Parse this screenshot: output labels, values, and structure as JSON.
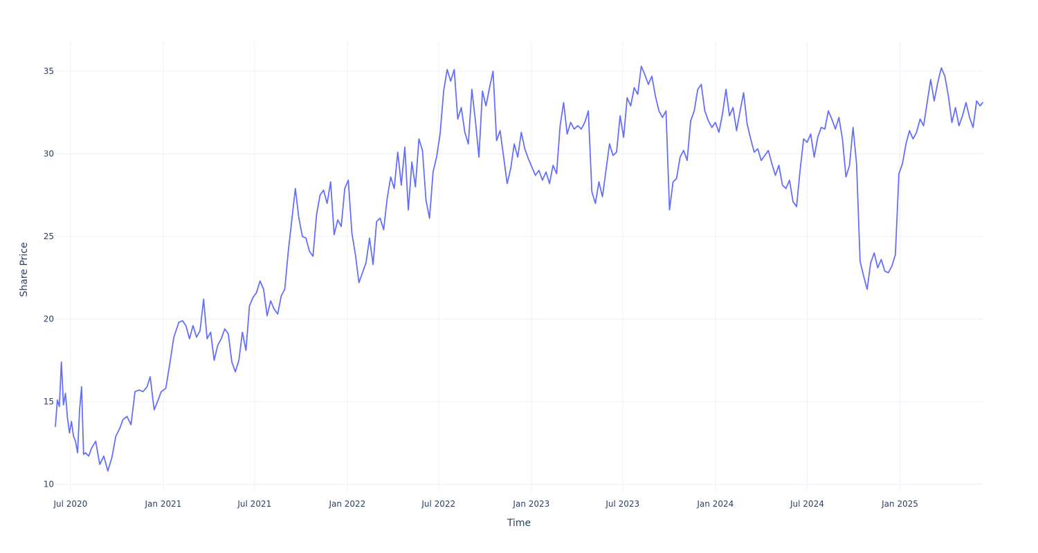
{
  "chart_data": {
    "type": "line",
    "title": "",
    "xlabel": "Time",
    "ylabel": "Share Price",
    "xlim": [
      "2020-06-01",
      "2025-06-14"
    ],
    "ylim": [
      9.6,
      36.8
    ],
    "grid": true,
    "legend": "none",
    "x_ticks": [
      {
        "date": "2020-07-01",
        "label": "Jul 2020"
      },
      {
        "date": "2021-01-01",
        "label": "Jan 2021"
      },
      {
        "date": "2021-07-01",
        "label": "Jul 2021"
      },
      {
        "date": "2022-01-01",
        "label": "Jan 2022"
      },
      {
        "date": "2022-07-01",
        "label": "Jul 2022"
      },
      {
        "date": "2023-01-01",
        "label": "Jan 2023"
      },
      {
        "date": "2023-07-01",
        "label": "Jul 2023"
      },
      {
        "date": "2024-01-01",
        "label": "Jan 2024"
      },
      {
        "date": "2024-07-01",
        "label": "Jul 2024"
      },
      {
        "date": "2025-01-01",
        "label": "Jan 2025"
      }
    ],
    "y_ticks": [
      {
        "value": 10,
        "label": "10"
      },
      {
        "value": 15,
        "label": "15"
      },
      {
        "value": 20,
        "label": "20"
      },
      {
        "value": 25,
        "label": "25"
      },
      {
        "value": 30,
        "label": "30"
      },
      {
        "value": 35,
        "label": "35"
      }
    ],
    "series": [
      {
        "color": "#636efa",
        "x": [
          "2020-06-01",
          "2020-06-05",
          "2020-06-09",
          "2020-06-13",
          "2020-06-17",
          "2020-06-21",
          "2020-06-25",
          "2020-06-29",
          "2020-07-03",
          "2020-07-07",
          "2020-07-11",
          "2020-07-15",
          "2020-07-19",
          "2020-07-23",
          "2020-07-27",
          "2020-07-31",
          "2020-08-06",
          "2020-08-12",
          "2020-08-20",
          "2020-08-28",
          "2020-09-05",
          "2020-09-13",
          "2020-09-21",
          "2020-09-29",
          "2020-10-07",
          "2020-10-13",
          "2020-10-21",
          "2020-10-29",
          "2020-11-06",
          "2020-11-14",
          "2020-11-22",
          "2020-11-30",
          "2020-12-06",
          "2020-12-14",
          "2020-12-22",
          "2020-12-28",
          "2021-01-06",
          "2021-01-14",
          "2021-01-22",
          "2021-02-01",
          "2021-02-08",
          "2021-02-15",
          "2021-02-22",
          "2021-03-01",
          "2021-03-08",
          "2021-03-15",
          "2021-03-22",
          "2021-03-29",
          "2021-04-05",
          "2021-04-12",
          "2021-04-19",
          "2021-04-26",
          "2021-05-03",
          "2021-05-10",
          "2021-05-17",
          "2021-05-24",
          "2021-05-31",
          "2021-06-07",
          "2021-06-14",
          "2021-06-21",
          "2021-06-28",
          "2021-07-05",
          "2021-07-12",
          "2021-07-19",
          "2021-07-26",
          "2021-08-02",
          "2021-08-09",
          "2021-08-16",
          "2021-08-23",
          "2021-08-30",
          "2021-09-06",
          "2021-09-13",
          "2021-09-20",
          "2021-09-27",
          "2021-10-04",
          "2021-10-11",
          "2021-10-18",
          "2021-10-25",
          "2021-11-01",
          "2021-11-08",
          "2021-11-15",
          "2021-11-22",
          "2021-11-29",
          "2021-12-06",
          "2021-12-13",
          "2021-12-20",
          "2021-12-27",
          "2022-01-03",
          "2022-01-10",
          "2022-01-17",
          "2022-01-24",
          "2022-01-31",
          "2022-02-07",
          "2022-02-14",
          "2022-02-21",
          "2022-02-28",
          "2022-03-07",
          "2022-03-14",
          "2022-03-21",
          "2022-03-28",
          "2022-04-04",
          "2022-04-11",
          "2022-04-18",
          "2022-04-25",
          "2022-05-02",
          "2022-05-09",
          "2022-05-16",
          "2022-05-23",
          "2022-05-30",
          "2022-06-06",
          "2022-06-13",
          "2022-06-20",
          "2022-06-27",
          "2022-07-04",
          "2022-07-11",
          "2022-07-18",
          "2022-07-25",
          "2022-08-01",
          "2022-08-08",
          "2022-08-15",
          "2022-08-22",
          "2022-08-29",
          "2022-09-05",
          "2022-09-12",
          "2022-09-19",
          "2022-09-26",
          "2022-10-03",
          "2022-10-10",
          "2022-10-17",
          "2022-10-24",
          "2022-10-31",
          "2022-11-07",
          "2022-11-14",
          "2022-11-21",
          "2022-11-28",
          "2022-12-05",
          "2022-12-12",
          "2022-12-19",
          "2022-12-26",
          "2023-01-02",
          "2023-01-09",
          "2023-01-16",
          "2023-01-23",
          "2023-01-30",
          "2023-02-06",
          "2023-02-13",
          "2023-02-20",
          "2023-02-27",
          "2023-03-06",
          "2023-03-13",
          "2023-03-20",
          "2023-03-27",
          "2023-04-03",
          "2023-04-10",
          "2023-04-17",
          "2023-04-24",
          "2023-05-01",
          "2023-05-08",
          "2023-05-15",
          "2023-05-22",
          "2023-05-29",
          "2023-06-05",
          "2023-06-12",
          "2023-06-19",
          "2023-06-26",
          "2023-07-03",
          "2023-07-10",
          "2023-07-17",
          "2023-07-24",
          "2023-07-31",
          "2023-08-07",
          "2023-08-14",
          "2023-08-21",
          "2023-08-28",
          "2023-09-04",
          "2023-09-11",
          "2023-09-18",
          "2023-09-25",
          "2023-10-02",
          "2023-10-09",
          "2023-10-16",
          "2023-10-23",
          "2023-10-30",
          "2023-11-06",
          "2023-11-13",
          "2023-11-20",
          "2023-11-27",
          "2023-12-04",
          "2023-12-11",
          "2023-12-18",
          "2023-12-25",
          "2024-01-01",
          "2024-01-08",
          "2024-01-15",
          "2024-01-22",
          "2024-01-29",
          "2024-02-05",
          "2024-02-12",
          "2024-02-19",
          "2024-02-26",
          "2024-03-04",
          "2024-03-11",
          "2024-03-18",
          "2024-03-25",
          "2024-04-01",
          "2024-04-08",
          "2024-04-15",
          "2024-04-22",
          "2024-04-29",
          "2024-05-06",
          "2024-05-13",
          "2024-05-20",
          "2024-05-27",
          "2024-06-03",
          "2024-06-10",
          "2024-06-17",
          "2024-06-24",
          "2024-07-01",
          "2024-07-08",
          "2024-07-15",
          "2024-07-22",
          "2024-07-29",
          "2024-08-05",
          "2024-08-12",
          "2024-08-19",
          "2024-08-26",
          "2024-09-02",
          "2024-09-09",
          "2024-09-16",
          "2024-09-23",
          "2024-09-30",
          "2024-10-07",
          "2024-10-14",
          "2024-10-21",
          "2024-10-28",
          "2024-11-04",
          "2024-11-11",
          "2024-11-18",
          "2024-11-25",
          "2024-12-02",
          "2024-12-09",
          "2024-12-16",
          "2024-12-23",
          "2024-12-30",
          "2025-01-06",
          "2025-01-13",
          "2025-01-20",
          "2025-01-27",
          "2025-02-03",
          "2025-02-10",
          "2025-02-17",
          "2025-02-24",
          "2025-03-03",
          "2025-03-10",
          "2025-03-17",
          "2025-03-24",
          "2025-03-31",
          "2025-04-07",
          "2025-04-14",
          "2025-04-21",
          "2025-04-28",
          "2025-05-05",
          "2025-05-12",
          "2025-05-19",
          "2025-05-26",
          "2025-06-02",
          "2025-06-09",
          "2025-06-14"
        ],
        "y": [
          13.5,
          15.1,
          14.7,
          17.4,
          14.8,
          15.5,
          14.0,
          13.1,
          13.8,
          12.9,
          12.6,
          11.9,
          14.5,
          15.9,
          11.8,
          11.9,
          11.7,
          12.2,
          12.6,
          11.2,
          11.7,
          10.8,
          11.6,
          12.9,
          13.4,
          13.9,
          14.1,
          13.6,
          15.6,
          15.7,
          15.6,
          15.9,
          16.5,
          14.5,
          15.1,
          15.6,
          15.8,
          17.3,
          18.9,
          19.8,
          19.9,
          19.6,
          18.8,
          19.6,
          18.9,
          19.3,
          21.2,
          18.8,
          19.2,
          17.5,
          18.4,
          18.8,
          19.4,
          19.1,
          17.4,
          16.8,
          17.5,
          19.2,
          18.1,
          20.8,
          21.3,
          21.6,
          22.3,
          21.8,
          20.2,
          21.1,
          20.6,
          20.3,
          21.4,
          21.8,
          24.1,
          26.0,
          27.9,
          26.1,
          25.0,
          24.9,
          24.1,
          23.8,
          26.3,
          27.5,
          27.8,
          27.0,
          28.3,
          25.1,
          26.0,
          25.6,
          27.9,
          28.4,
          25.2,
          23.9,
          22.2,
          22.8,
          23.4,
          24.9,
          23.3,
          25.9,
          26.1,
          25.4,
          27.3,
          28.6,
          27.9,
          30.1,
          28.1,
          30.4,
          26.6,
          29.5,
          28.0,
          30.9,
          30.2,
          27.2,
          26.1,
          28.9,
          29.8,
          31.2,
          33.8,
          35.1,
          34.4,
          35.1,
          32.1,
          32.8,
          31.3,
          30.6,
          33.9,
          32.0,
          29.8,
          33.8,
          32.9,
          34.0,
          35.0,
          30.8,
          31.4,
          29.8,
          28.2,
          29.1,
          30.6,
          29.8,
          31.3,
          30.3,
          29.7,
          29.2,
          28.7,
          29.0,
          28.4,
          28.9,
          28.2,
          29.3,
          28.8,
          31.7,
          33.1,
          31.2,
          31.9,
          31.5,
          31.7,
          31.5,
          31.9,
          32.6,
          27.7,
          27.0,
          28.3,
          27.4,
          29.0,
          30.6,
          29.9,
          30.1,
          32.3,
          31.0,
          33.4,
          32.9,
          34.0,
          33.6,
          35.3,
          34.8,
          34.2,
          34.7,
          33.5,
          32.6,
          32.2,
          32.6,
          26.6,
          28.3,
          28.5,
          29.8,
          30.2,
          29.6,
          32.0,
          32.6,
          33.9,
          34.2,
          32.6,
          32.0,
          31.6,
          31.9,
          31.3,
          32.4,
          33.9,
          32.3,
          32.8,
          31.4,
          32.6,
          33.7,
          31.8,
          30.9,
          30.1,
          30.3,
          29.6,
          29.9,
          30.2,
          29.4,
          28.7,
          29.3,
          28.1,
          27.9,
          28.4,
          27.1,
          26.8,
          29.0,
          30.9,
          30.7,
          31.2,
          29.8,
          31.0,
          31.6,
          31.5,
          32.6,
          32.1,
          31.5,
          32.2,
          30.9,
          28.6,
          29.3,
          31.6,
          29.4,
          23.5,
          22.6,
          21.8,
          23.4,
          24.0,
          23.1,
          23.6,
          22.9,
          22.8,
          23.2,
          23.9,
          28.8,
          29.4,
          30.6,
          31.4,
          30.9,
          31.3,
          32.1,
          31.7,
          33.1,
          34.5,
          33.2,
          34.3,
          35.2,
          34.7,
          33.5,
          31.9,
          32.8,
          31.7,
          32.3,
          33.1,
          32.2,
          31.6,
          33.2,
          32.9,
          33.1
        ]
      }
    ]
  }
}
